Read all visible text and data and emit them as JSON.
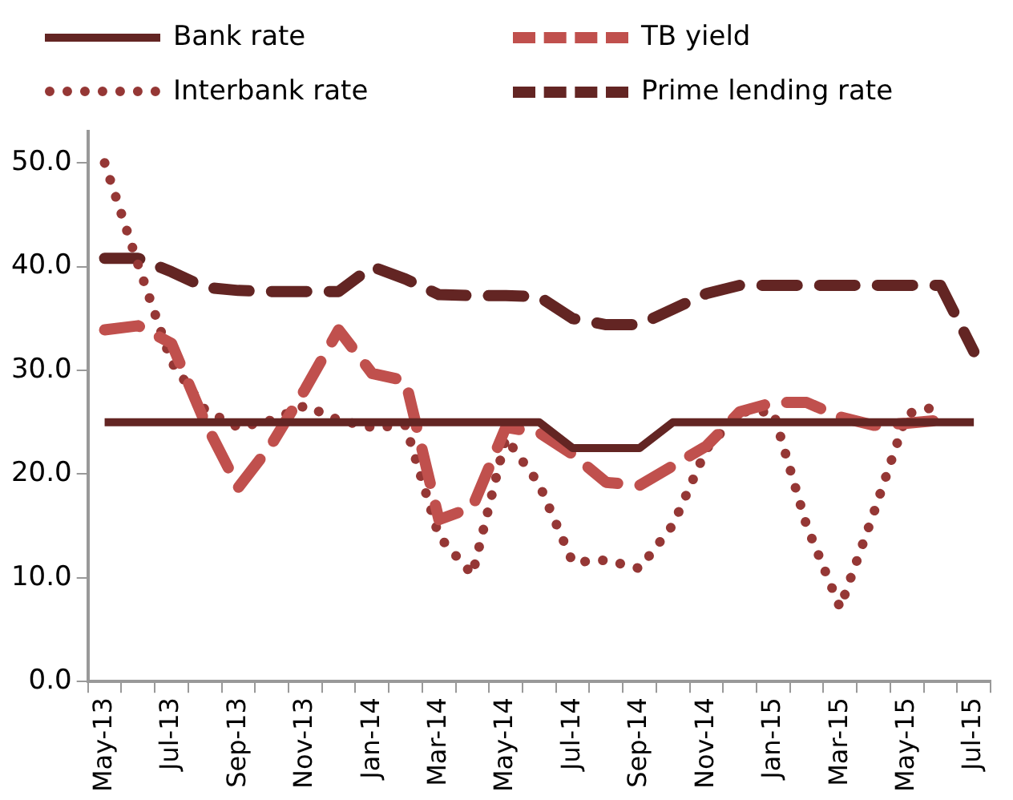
{
  "chart_data": {
    "type": "line",
    "categories": [
      "May-13",
      null,
      "Jul-13",
      null,
      "Sep-13",
      null,
      "Nov-13",
      null,
      "Jan-14",
      null,
      "Mar-14",
      null,
      "May-14",
      null,
      "Jul-14",
      null,
      "Sep-14",
      null,
      "Nov-14",
      null,
      "Jan-15",
      null,
      "Mar-15",
      null,
      "May-15",
      null,
      "Jul-15"
    ],
    "series": [
      {
        "name": "Bank rate",
        "color": "#632523",
        "line_style": "solid",
        "values": [
          25,
          25,
          25,
          25,
          25,
          25,
          25,
          25,
          25,
          25,
          25,
          25,
          25,
          25,
          22.5,
          22.5,
          22.5,
          25,
          25,
          25,
          25,
          25,
          25,
          25,
          25,
          25,
          25
        ]
      },
      {
        "name": "TB yield",
        "color": "#c0504d",
        "line_style": "dashed",
        "values": [
          33.9,
          34.3,
          32.6,
          25,
          18.7,
          22.9,
          28.2,
          33.9,
          29.7,
          29,
          15.6,
          16.8,
          24.5,
          24,
          21.9,
          19.2,
          18.9,
          20.8,
          22.7,
          26,
          26.9,
          26.9,
          25.5,
          24.7,
          24.9,
          25.2,
          null
        ]
      },
      {
        "name": "Interbank rate",
        "color": "#953735",
        "line_style": "dotted",
        "values": [
          50,
          40.2,
          30.8,
          26.2,
          24.5,
          25.2,
          26.6,
          25.2,
          24.5,
          24.7,
          14,
          10.3,
          23.5,
          19,
          11.5,
          11.7,
          10.9,
          15.1,
          22.4,
          26,
          26,
          15,
          7.1,
          16.2,
          25.8,
          26.6,
          null
        ]
      },
      {
        "name": "Prime lending rate",
        "color": "#632523",
        "line_style": "dashed",
        "values": [
          40.8,
          40.8,
          39.5,
          38,
          37.7,
          37.6,
          37.6,
          37.6,
          40,
          38.8,
          37.3,
          37.2,
          37.2,
          37.1,
          35,
          34.4,
          34.4,
          35.9,
          37.4,
          38.2,
          38.2,
          38.2,
          38.2,
          38.2,
          38.2,
          38.2,
          31.8
        ]
      }
    ],
    "ylim": [
      0,
      53
    ],
    "yticks": [
      {
        "value": 0,
        "label": "0.0"
      },
      {
        "value": 10,
        "label": "10.0"
      },
      {
        "value": 20,
        "label": "20.0"
      },
      {
        "value": 30,
        "label": "30.0"
      },
      {
        "value": 40,
        "label": "40.0"
      },
      {
        "value": 50,
        "label": "50.0"
      }
    ],
    "grid": false,
    "legend": "top",
    "marker": "none"
  }
}
